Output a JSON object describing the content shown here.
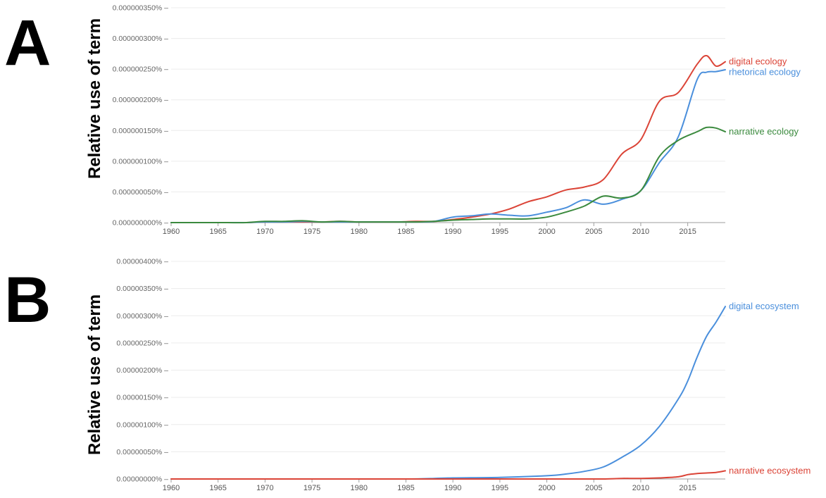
{
  "chart_data": [
    {
      "type": "line",
      "panel": "A",
      "ylabel": "Relative use of term",
      "x": [
        1960,
        1962,
        1964,
        1966,
        1968,
        1970,
        1972,
        1974,
        1976,
        1978,
        1980,
        1982,
        1984,
        1986,
        1988,
        1990,
        1992,
        1994,
        1996,
        1998,
        2000,
        2002,
        2004,
        2006,
        2008,
        2010,
        2012,
        2014,
        2016,
        2017,
        2018,
        2019
      ],
      "xticks": [
        "1960",
        "1965",
        "1970",
        "1975",
        "1980",
        "1985",
        "1990",
        "1995",
        "2000",
        "2005",
        "2010",
        "2015"
      ],
      "xlim": [
        1960,
        2019
      ],
      "yticks": [
        "0.000000000%",
        "0.000000050%",
        "0.000000100%",
        "0.000000150%",
        "0.000000200%",
        "0.000000250%",
        "0.000000300%",
        "0.000000350%"
      ],
      "ylim": [
        0,
        350
      ],
      "series": [
        {
          "name": "digital ecology",
          "color": "#db4437",
          "values": [
            0,
            0,
            0,
            0,
            0,
            1,
            1,
            1,
            1,
            2,
            1,
            1,
            1,
            2,
            2,
            5,
            9,
            14,
            22,
            34,
            42,
            53,
            58,
            70,
            112,
            135,
            198,
            212,
            258,
            272,
            255,
            262
          ]
        },
        {
          "name": "rhetorical ecology",
          "color": "#4a8fdc",
          "values": [
            0,
            0,
            0,
            0,
            0,
            1,
            1,
            2,
            1,
            1,
            1,
            1,
            1,
            1,
            2,
            9,
            11,
            14,
            12,
            11,
            17,
            24,
            37,
            30,
            38,
            52,
            98,
            140,
            233,
            245,
            246,
            249
          ]
        },
        {
          "name": "narrative ecology",
          "color": "#3b8a3e",
          "values": [
            0,
            0,
            0,
            0,
            0,
            2,
            2,
            3,
            1,
            2,
            1,
            1,
            1,
            1,
            2,
            4,
            5,
            6,
            6,
            6,
            9,
            17,
            27,
            43,
            40,
            52,
            108,
            134,
            148,
            155,
            154,
            148
          ]
        }
      ]
    },
    {
      "type": "line",
      "panel": "B",
      "ylabel": "Relative use of term",
      "x": [
        1960,
        1965,
        1970,
        1975,
        1980,
        1985,
        1988,
        1990,
        1995,
        2000,
        2002,
        2004,
        2006,
        2008,
        2010,
        2012,
        2014,
        2015,
        2016,
        2017,
        2018,
        2019
      ],
      "xticks": [
        "1960",
        "1965",
        "1970",
        "1975",
        "1980",
        "1985",
        "1990",
        "1995",
        "2000",
        "2005",
        "2010",
        "2015"
      ],
      "xlim": [
        1960,
        2019
      ],
      "yticks": [
        "0.00000000%",
        "0.00000050%",
        "0.00000100%",
        "0.00000150%",
        "0.00000200%",
        "0.00000250%",
        "0.00000300%",
        "0.00000350%",
        "0.00000400%"
      ],
      "ylim": [
        0,
        400
      ],
      "series": [
        {
          "name": "digital ecosystem",
          "color": "#4a8fdc",
          "values": [
            0,
            0,
            0,
            0,
            0,
            0,
            1,
            2,
            3,
            6,
            9,
            14,
            22,
            40,
            62,
            97,
            147,
            180,
            224,
            262,
            288,
            317
          ]
        },
        {
          "name": "narrative ecosystem",
          "color": "#db4437",
          "values": [
            0,
            0,
            0,
            0,
            0,
            0,
            0,
            0,
            0,
            0,
            0,
            0,
            0,
            1,
            1,
            2,
            4,
            8,
            10,
            11,
            12,
            15
          ]
        }
      ]
    }
  ],
  "panels": [
    {
      "letter": "A",
      "ylabel": "Relative use of term"
    },
    {
      "letter": "B",
      "ylabel": "Relative use of term"
    }
  ]
}
